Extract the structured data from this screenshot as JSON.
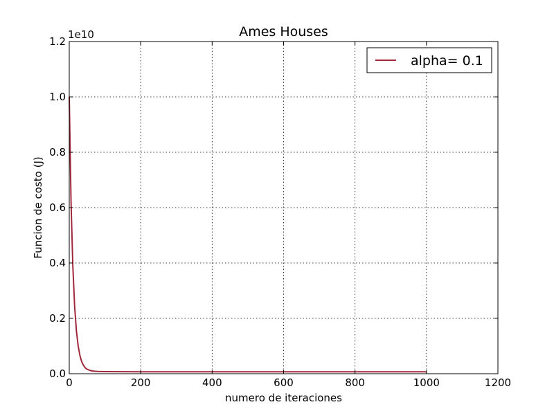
{
  "chart_data": {
    "type": "line",
    "title": "Ames Houses",
    "xlabel": "numero de iteraciones",
    "ylabel": "Funcion de costo (J)",
    "y_multiplier_label": "1e10",
    "xlim": [
      0,
      1200
    ],
    "ylim": [
      0,
      1.2
    ],
    "xticks": [
      0,
      200,
      400,
      600,
      800,
      1000,
      1200
    ],
    "xtick_labels": [
      "0",
      "200",
      "400",
      "600",
      "800",
      "1000",
      "1200"
    ],
    "yticks": [
      0,
      0.2,
      0.4,
      0.6,
      0.8,
      1.0,
      1.2
    ],
    "ytick_labels": [
      "0.0",
      "0.2",
      "0.4",
      "0.6",
      "0.8",
      "1.0",
      "1.2"
    ],
    "grid": true,
    "legend_position": "top-right",
    "series": [
      {
        "name": "alpha= 0.1",
        "color": "#a0283c",
        "x": [
          0,
          5,
          10,
          15,
          20,
          25,
          30,
          35,
          40,
          45,
          50,
          60,
          70,
          80,
          100,
          150,
          200,
          400,
          600,
          800,
          1000
        ],
        "y": [
          1.0,
          0.62,
          0.39,
          0.245,
          0.155,
          0.1,
          0.065,
          0.043,
          0.03,
          0.021,
          0.016,
          0.011,
          0.009,
          0.008,
          0.0075,
          0.0072,
          0.007,
          0.007,
          0.007,
          0.007,
          0.007
        ]
      }
    ]
  }
}
